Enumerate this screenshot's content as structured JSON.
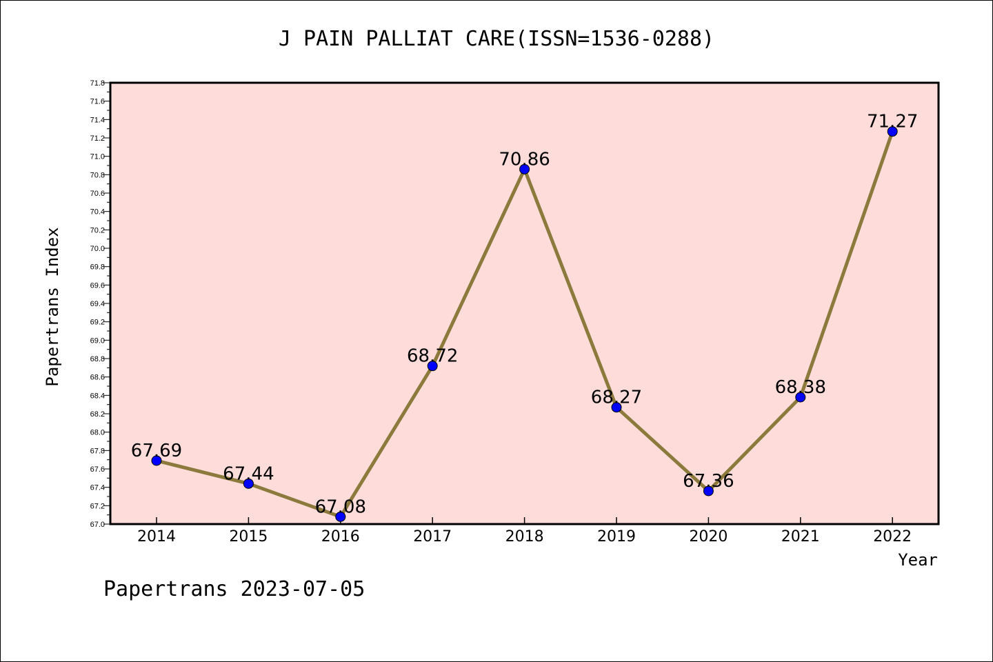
{
  "chart_data": {
    "type": "line",
    "title": "J PAIN PALLIAT CARE(ISSN=1536-0288)",
    "xlabel": "Year",
    "ylabel": "Papertrans Index",
    "categories": [
      "2014",
      "2015",
      "2016",
      "2017",
      "2018",
      "2019",
      "2020",
      "2021",
      "2022"
    ],
    "series": [
      {
        "values": [
          67.69,
          67.44,
          67.08,
          68.72,
          70.86,
          68.27,
          67.36,
          68.38,
          71.27
        ],
        "labels": [
          "67.69",
          "67.44",
          "67.08",
          "68.72",
          "70.86",
          "68.27",
          "67.36",
          "68.38",
          "71.27"
        ]
      }
    ],
    "ylim": [
      67.0,
      71.8
    ],
    "y_ticks": [
      "67.0",
      "67.2",
      "67.4",
      "67.6",
      "67.8",
      "68.0",
      "68.2",
      "68.4",
      "68.6",
      "68.8",
      "69.0",
      "69.2",
      "69.4",
      "69.6",
      "69.8",
      "70.0",
      "70.2",
      "70.4",
      "70.6",
      "70.8",
      "71.0",
      "71.2",
      "71.4",
      "71.6",
      "71.8"
    ],
    "grid": false,
    "colors": {
      "plot_background": "#fddcda",
      "line": "#8b7a3c",
      "marker": "#0000ff"
    }
  },
  "footer": "Papertrans 2023-07-05"
}
